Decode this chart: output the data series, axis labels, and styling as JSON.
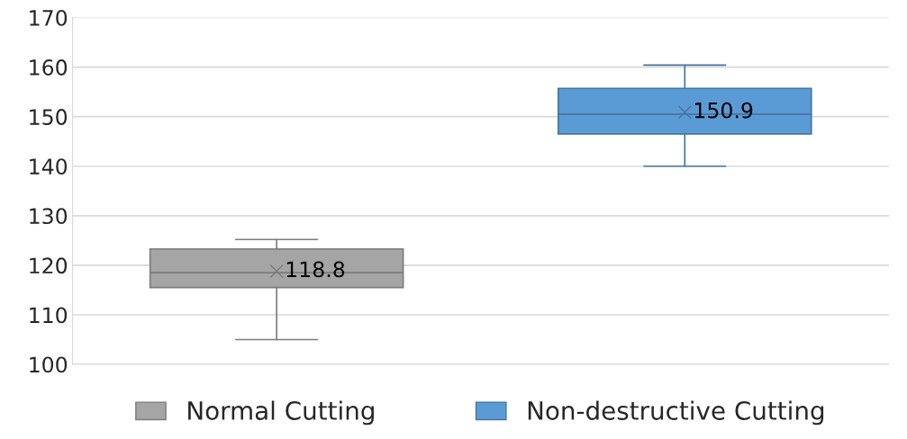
{
  "chart_data": {
    "type": "box",
    "categories": [
      null,
      null
    ],
    "series": [
      {
        "name": "Normal Cutting",
        "color": "#a5a5a5",
        "boxes": [
          {
            "low": 105,
            "q1": 115.5,
            "median": 118.5,
            "q3": 123.3,
            "high": 125.2,
            "mean": 118.8
          },
          null
        ],
        "value_labels": [
          "118.8",
          null
        ]
      },
      {
        "name": "Non-destructive Cutting",
        "color": "#5b9bd5",
        "boxes": [
          null,
          {
            "low": 140,
            "q1": 146.5,
            "median": 150.5,
            "q3": 155.7,
            "high": 160.4,
            "mean": 150.9
          }
        ],
        "value_labels": [
          null,
          "150.9"
        ]
      }
    ],
    "ylim": [
      100,
      170
    ],
    "yticks": [
      100,
      110,
      120,
      130,
      140,
      150,
      160,
      170
    ],
    "grid": "y",
    "legend": "bottom",
    "marker": "cross"
  }
}
